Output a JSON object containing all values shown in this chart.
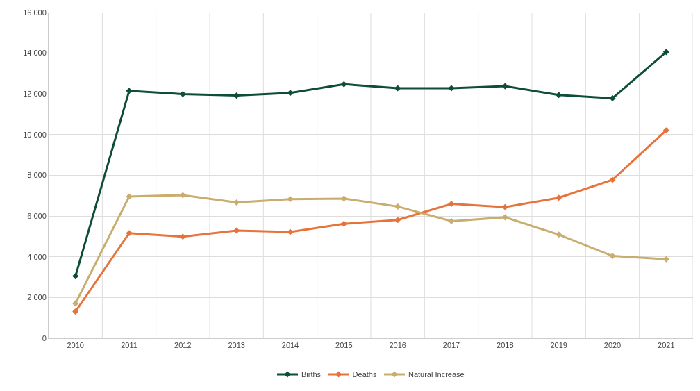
{
  "chart_data": {
    "type": "line",
    "categories": [
      "2010",
      "2011",
      "2012",
      "2013",
      "2014",
      "2015",
      "2016",
      "2017",
      "2018",
      "2019",
      "2020",
      "2021"
    ],
    "series": [
      {
        "name": "Births",
        "color": "#0e4d3a",
        "values": [
          3050,
          12150,
          11990,
          11920,
          12050,
          12480,
          12280,
          12280,
          12380,
          11950,
          11790,
          14060
        ]
      },
      {
        "name": "Deaths",
        "color": "#e8733a",
        "values": [
          1310,
          5160,
          4990,
          5290,
          5220,
          5620,
          5810,
          6600,
          6440,
          6900,
          7780,
          10210
        ]
      },
      {
        "name": "Natural Increase",
        "color": "#c9ad6e",
        "values": [
          1710,
          6960,
          7030,
          6670,
          6830,
          6860,
          6470,
          5750,
          5940,
          5090,
          4040,
          3880
        ]
      }
    ],
    "ylim": [
      0,
      16000
    ],
    "yticks": [
      0,
      {
        "value": 2000,
        "label": "2 000"
      },
      {
        "value": 4000,
        "label": "4 000"
      },
      {
        "value": 6000,
        "label": "6 000"
      },
      {
        "value": 8000,
        "label": "8 000"
      },
      {
        "value": 10000,
        "label": "10 000"
      },
      {
        "value": 12000,
        "label": "12 000"
      },
      {
        "value": 14000,
        "label": "14 000"
      },
      {
        "value": 16000,
        "label": "16 000"
      }
    ],
    "grid": true,
    "legend": "bottom",
    "marker": "diamond",
    "line_style": "solid"
  }
}
